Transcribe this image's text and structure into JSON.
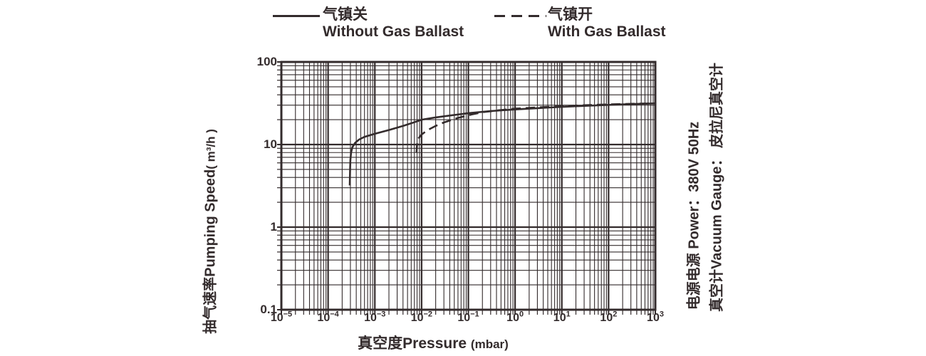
{
  "colors": {
    "ink": "#332b2c",
    "background": "#ffffff"
  },
  "legend": {
    "items": [
      {
        "line_style": "solid",
        "label_zh": "气镇关",
        "label_en": "Without Gas Ballast"
      },
      {
        "line_style": "dashed",
        "label_zh": "气镇开",
        "label_en": "With Gas Ballast"
      }
    ]
  },
  "side_notes": {
    "power": "电源电源  Power：380V 50Hz",
    "gauge": "真空计Vacuum Gauge：  皮拉尼真空计"
  },
  "chart_data": {
    "type": "line",
    "x_scale": "log",
    "y_scale": "log",
    "xlim": [
      1e-05,
      1000
    ],
    "ylim": [
      0.1,
      100
    ],
    "xlabel": "真空度Pressure",
    "xlabel_unit": "(mbar)",
    "ylabel": "抽气速率Pumping Speed",
    "ylabel_unit": "( m³/h )",
    "x_tick_exponents": [
      -5,
      -4,
      -3,
      -2,
      -1,
      0,
      1,
      2,
      3
    ],
    "y_tick_labels": [
      "100",
      "10",
      "1",
      "0.1"
    ],
    "y_tick_values": [
      100,
      10,
      1,
      0.1
    ],
    "grid": "log-log with minor gridlines, tick marks outside bottom and left edges",
    "legend_position": "top",
    "series": [
      {
        "name": "气镇关 Without Gas Ballast",
        "style": "solid",
        "points": [
          [
            0.00029,
            3.2
          ],
          [
            0.000295,
            5.0
          ],
          [
            0.0003,
            6.5
          ],
          [
            0.00031,
            8.0
          ],
          [
            0.00033,
            9.3
          ],
          [
            0.00038,
            10.5
          ],
          [
            0.00046,
            11.5
          ],
          [
            0.0006,
            12.4
          ],
          [
            0.001,
            13.5
          ],
          [
            0.002,
            15.0
          ],
          [
            0.004,
            16.8
          ],
          [
            0.007,
            18.6
          ],
          [
            0.01,
            20.0
          ],
          [
            0.02,
            21.3
          ],
          [
            0.05,
            22.8
          ],
          [
            0.1,
            24.0
          ],
          [
            0.3,
            25.4
          ],
          [
            1.0,
            26.6
          ],
          [
            3.0,
            27.6
          ],
          [
            10,
            28.6
          ],
          [
            30,
            29.4
          ],
          [
            100,
            30.2
          ],
          [
            300,
            30.9
          ],
          [
            1000,
            31.5
          ]
        ]
      },
      {
        "name": "气镇开 With Gas Ballast",
        "style": "dashed",
        "points": [
          [
            0.0078,
            8.0
          ],
          [
            0.008,
            10.0
          ],
          [
            0.0085,
            11.8
          ],
          [
            0.01,
            13.2
          ],
          [
            0.013,
            14.8
          ],
          [
            0.02,
            16.8
          ],
          [
            0.03,
            18.5
          ],
          [
            0.06,
            21.0
          ],
          [
            0.12,
            23.2
          ],
          [
            0.22,
            24.8
          ],
          [
            0.5,
            26.2
          ],
          [
            1.0,
            27.2
          ],
          [
            3.0,
            28.2
          ],
          [
            10,
            29.1
          ],
          [
            30,
            29.9
          ],
          [
            100,
            30.6
          ],
          [
            300,
            31.1
          ],
          [
            1000,
            31.5
          ]
        ]
      }
    ]
  }
}
